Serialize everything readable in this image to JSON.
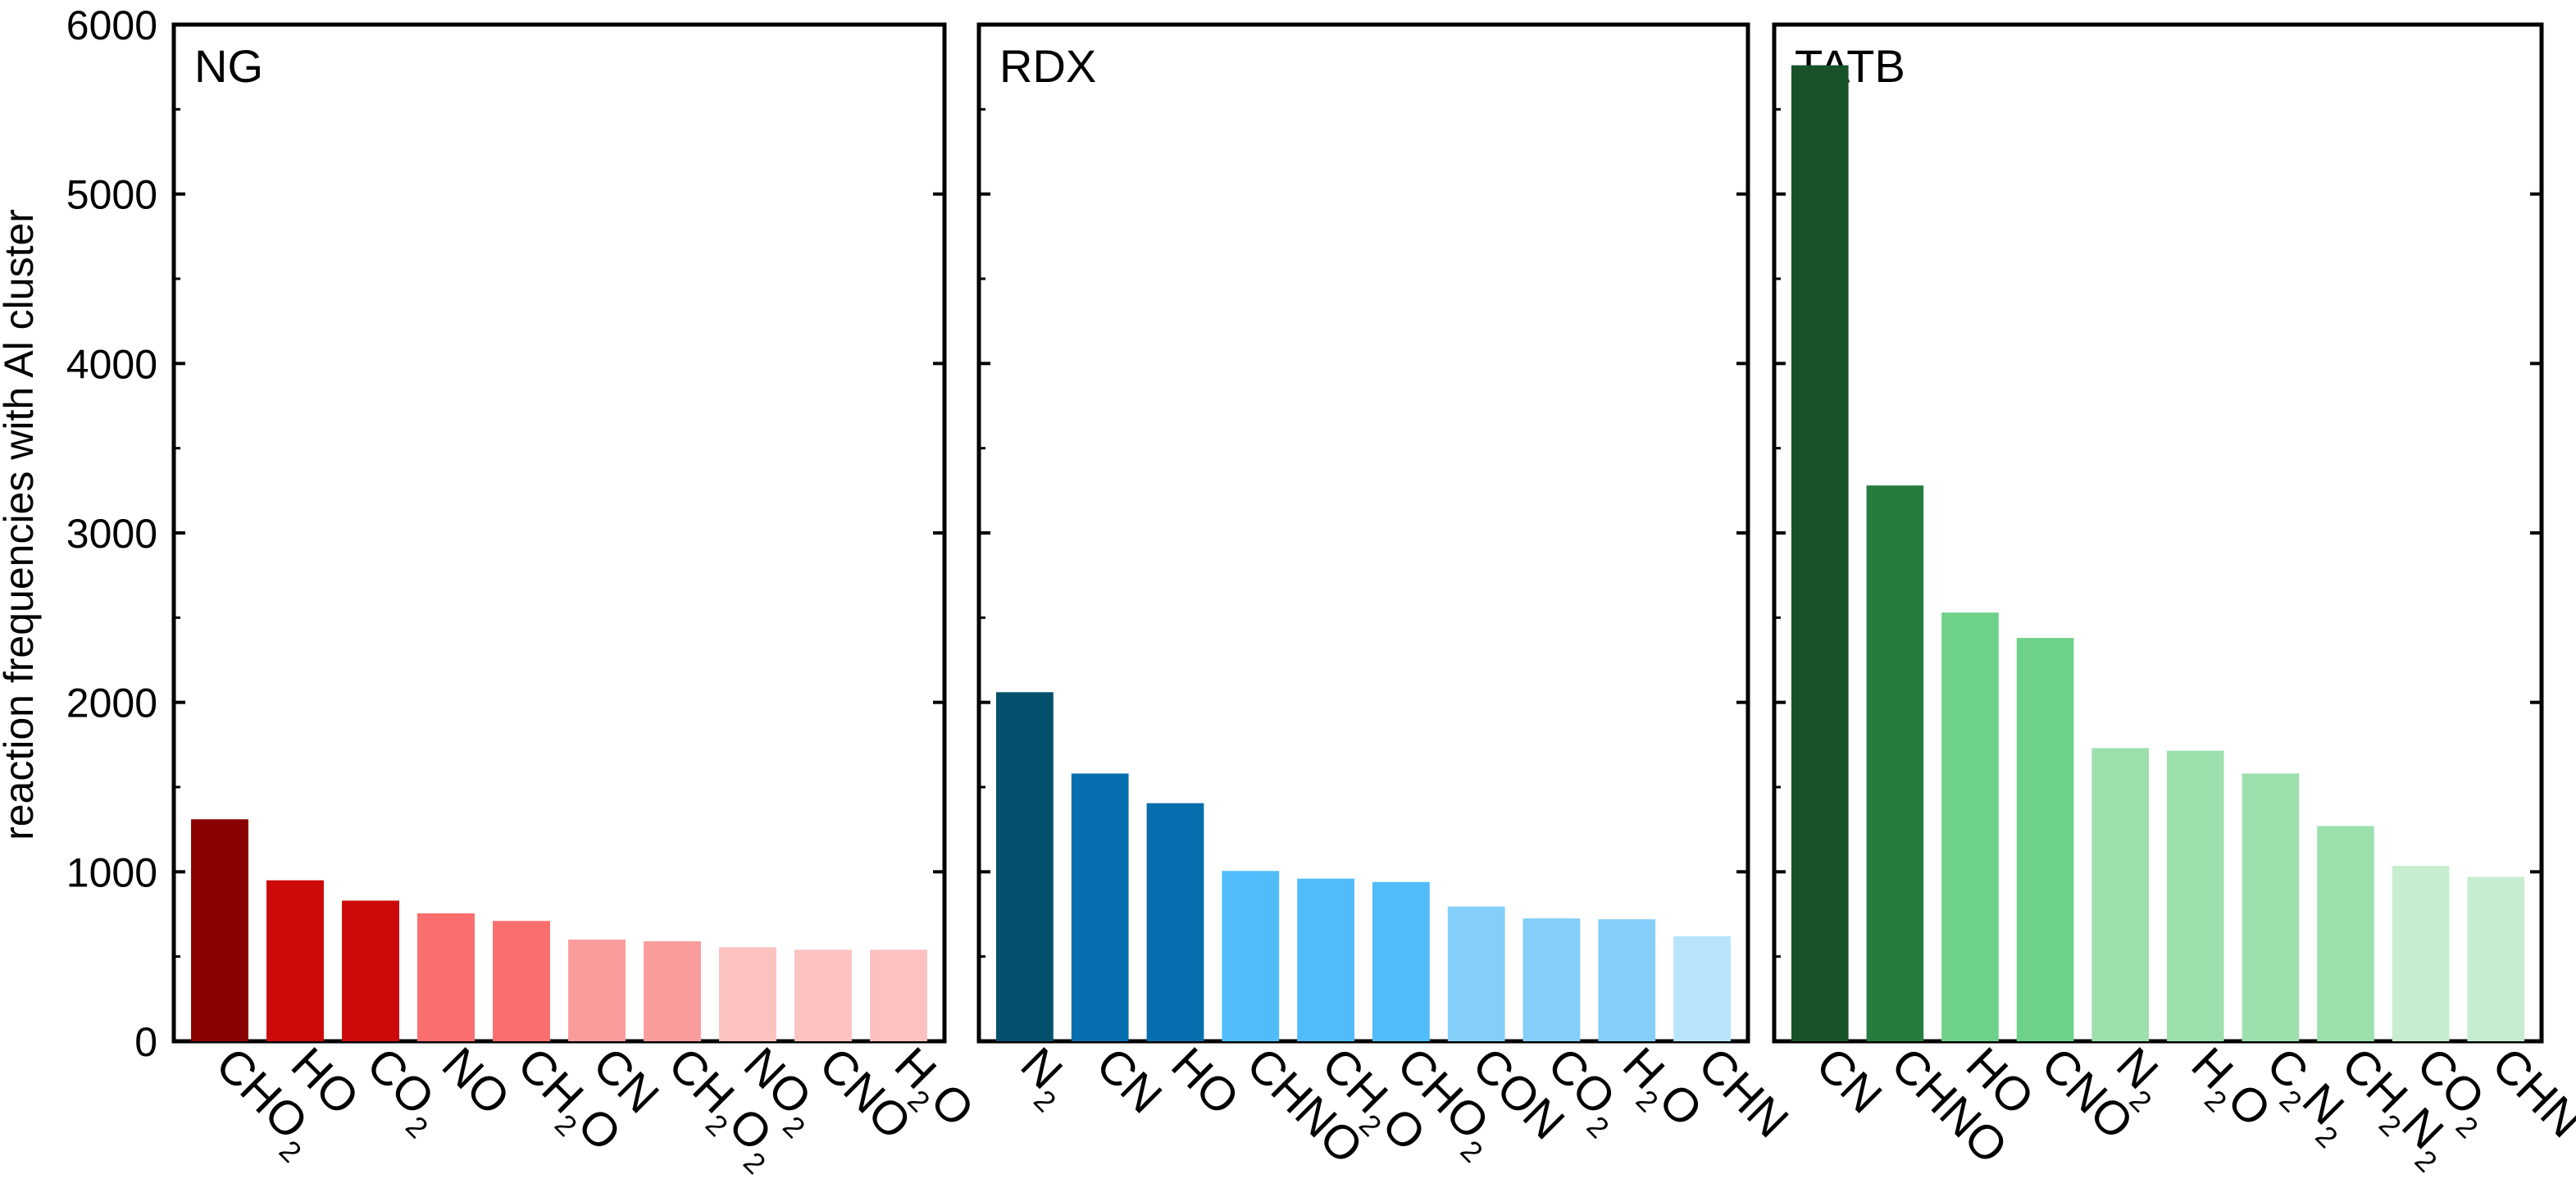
{
  "chart_data": {
    "type": "bar",
    "ylabel": "reaction frequencies with Al cluster",
    "ylim": [
      0,
      6000
    ],
    "yticks": [
      0,
      1000,
      2000,
      3000,
      4000,
      5000,
      6000
    ],
    "ytick_labels": [
      "0",
      "1000",
      "2000",
      "3000",
      "4000",
      "5000",
      "6000"
    ],
    "grid": false,
    "panels": [
      {
        "title": "NG",
        "categories": [
          [
            {
              "t": "CHO"
            },
            {
              "t": "2",
              "sub": true
            }
          ],
          [
            {
              "t": "HO"
            }
          ],
          [
            {
              "t": "CO"
            },
            {
              "t": "2",
              "sub": true
            }
          ],
          [
            {
              "t": "NO"
            }
          ],
          [
            {
              "t": "CH"
            },
            {
              "t": "2",
              "sub": true
            },
            {
              "t": "O"
            }
          ],
          [
            {
              "t": "CN"
            }
          ],
          [
            {
              "t": "CH"
            },
            {
              "t": "2",
              "sub": true
            },
            {
              "t": "O"
            },
            {
              "t": "2",
              "sub": true
            }
          ],
          [
            {
              "t": "NO"
            },
            {
              "t": "2",
              "sub": true
            }
          ],
          [
            {
              "t": "CNO"
            }
          ],
          [
            {
              "t": "H"
            },
            {
              "t": "2",
              "sub": true
            },
            {
              "t": "O"
            }
          ]
        ],
        "values": [
          1310,
          950,
          830,
          755,
          710,
          600,
          590,
          555,
          540,
          540
        ],
        "colors": [
          "#8b0000",
          "#cc0a0a",
          "#cc0a0a",
          "#fa6e6e",
          "#fa6e6e",
          "#fa9c9c",
          "#fa9c9c",
          "#fcc2c2",
          "#fcc2c2",
          "#fcc2c2"
        ]
      },
      {
        "title": "RDX",
        "categories": [
          [
            {
              "t": "N"
            },
            {
              "t": "2",
              "sub": true
            }
          ],
          [
            {
              "t": "CN"
            }
          ],
          [
            {
              "t": "HO"
            }
          ],
          [
            {
              "t": "CHNO"
            }
          ],
          [
            {
              "t": "CH"
            },
            {
              "t": "2",
              "sub": true
            },
            {
              "t": "O"
            }
          ],
          [
            {
              "t": "CHO"
            },
            {
              "t": "2",
              "sub": true
            }
          ],
          [
            {
              "t": "CON"
            }
          ],
          [
            {
              "t": "CO"
            },
            {
              "t": "2",
              "sub": true
            }
          ],
          [
            {
              "t": "H"
            },
            {
              "t": "2",
              "sub": true
            },
            {
              "t": "O"
            }
          ],
          [
            {
              "t": "CHN"
            }
          ]
        ],
        "values": [
          2060,
          1580,
          1405,
          1005,
          960,
          940,
          795,
          725,
          720,
          620
        ],
        "colors": [
          "#04506c",
          "#066eae",
          "#066eae",
          "#50bcfa",
          "#50bcfa",
          "#50bcfa",
          "#84cefa",
          "#84cefa",
          "#84cefa",
          "#b8e4fc"
        ]
      },
      {
        "title": "TATB",
        "categories": [
          [
            {
              "t": "CN"
            }
          ],
          [
            {
              "t": "CHNO"
            }
          ],
          [
            {
              "t": "HO"
            }
          ],
          [
            {
              "t": "CNO"
            }
          ],
          [
            {
              "t": "N"
            },
            {
              "t": "2",
              "sub": true
            }
          ],
          [
            {
              "t": "H"
            },
            {
              "t": "2",
              "sub": true
            },
            {
              "t": "O"
            }
          ],
          [
            {
              "t": "C"
            },
            {
              "t": "2",
              "sub": true
            },
            {
              "t": "N"
            },
            {
              "t": "2",
              "sub": true
            }
          ],
          [
            {
              "t": "CH"
            },
            {
              "t": "2",
              "sub": true
            },
            {
              "t": "N"
            },
            {
              "t": "2",
              "sub": true
            }
          ],
          [
            {
              "t": "CO"
            },
            {
              "t": "2",
              "sub": true
            }
          ],
          [
            {
              "t": "CHN"
            }
          ]
        ],
        "values": [
          5760,
          3280,
          2530,
          2380,
          1730,
          1715,
          1580,
          1270,
          1035,
          970
        ],
        "colors": [
          "#18522a",
          "#267c3e",
          "#6ed18a",
          "#6ed18a",
          "#9ce0ae",
          "#9ce0ae",
          "#9ce0ae",
          "#9ce0ae",
          "#c6edd0",
          "#c6edd0"
        ]
      }
    ]
  }
}
